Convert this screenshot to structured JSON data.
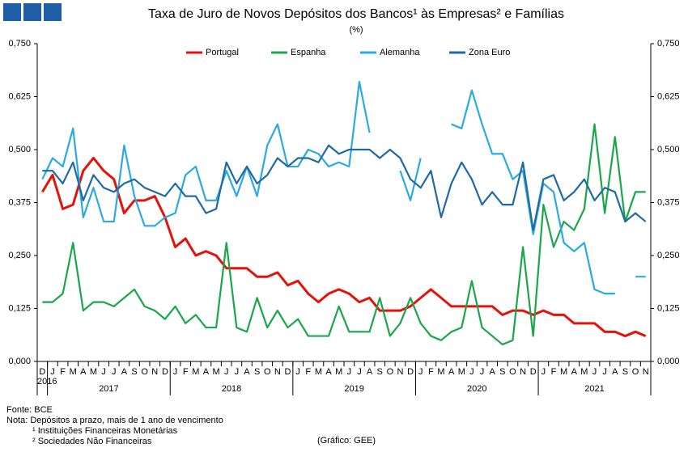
{
  "chart_data": {
    "type": "line",
    "title": "Taxa de Juro de Novos Depósitos dos Bancos¹ às Empresas² e Famílias",
    "subtitle": "(%)",
    "source": "Fonte: BCE",
    "note": "Nota: Depósitos a prazo, mais de 1 ano de vencimento",
    "footnotes": [
      "¹ Instituições Financeiras Monetárias",
      "² Sociedades Não Financeiras"
    ],
    "credit": "(Gráfico: GEE)",
    "categories": [
      "D",
      "J",
      "F",
      "M",
      "A",
      "M",
      "J",
      "J",
      "A",
      "S",
      "O",
      "N",
      "D",
      "J",
      "F",
      "M",
      "A",
      "M",
      "J",
      "J",
      "A",
      "S",
      "O",
      "N",
      "D",
      "J",
      "F",
      "M",
      "A",
      "M",
      "J",
      "J",
      "A",
      "S",
      "O",
      "N",
      "D",
      "J",
      "F",
      "M",
      "A",
      "M",
      "J",
      "J",
      "A",
      "S",
      "O",
      "N",
      "D",
      "J",
      "F",
      "M",
      "A",
      "M",
      "J",
      "J",
      "A",
      "S",
      "O",
      "N"
    ],
    "years": [
      "2016",
      "2017",
      "2018",
      "2019",
      "2020",
      "2021"
    ],
    "ylim": [
      0,
      0.75
    ],
    "yticks": [
      {
        "value": 0,
        "label": "0,000"
      },
      {
        "value": 0.125,
        "label": "0,125"
      },
      {
        "value": 0.25,
        "label": "0,250"
      },
      {
        "value": 0.375,
        "label": "0,375"
      },
      {
        "value": 0.5,
        "label": "0,500"
      },
      {
        "value": 0.625,
        "label": "0,625"
      },
      {
        "value": 0.75,
        "label": "0,750"
      }
    ],
    "y2lim": [
      0,
      0.75
    ],
    "y2ticks": [
      {
        "value": 0,
        "label": "0,000"
      },
      {
        "value": 0.125,
        "label": "0,125"
      },
      {
        "value": 0.25,
        "label": "0,250"
      },
      {
        "value": 0.375,
        "label": "0,375"
      },
      {
        "value": 0.5,
        "label": "0,500"
      },
      {
        "value": 0.625,
        "label": "0,625"
      },
      {
        "value": 0.75,
        "label": "0,750"
      }
    ],
    "grid": false,
    "legend": "top",
    "series": [
      {
        "name": "Portugal",
        "color": "#e3120b",
        "values": [
          0.4,
          0.44,
          0.36,
          0.37,
          0.45,
          0.48,
          0.45,
          0.43,
          0.35,
          0.38,
          0.38,
          0.39,
          0.34,
          0.27,
          0.29,
          0.25,
          0.26,
          0.25,
          0.22,
          0.22,
          0.22,
          0.2,
          0.2,
          0.21,
          0.18,
          0.19,
          0.16,
          0.14,
          0.16,
          0.17,
          0.16,
          0.14,
          0.15,
          0.12,
          0.12,
          0.12,
          0.13,
          0.15,
          0.17,
          0.15,
          0.13,
          0.13,
          0.13,
          0.13,
          0.13,
          0.11,
          0.12,
          0.12,
          0.11,
          0.12,
          0.11,
          0.11,
          0.09,
          0.09,
          0.09,
          0.07,
          0.07,
          0.06,
          0.07,
          0.06
        ]
      },
      {
        "name": "Espanha",
        "color": "#1aa64a",
        "values": [
          0.14,
          0.14,
          0.16,
          0.28,
          0.12,
          0.14,
          0.14,
          0.13,
          0.15,
          0.17,
          0.13,
          0.12,
          0.1,
          0.13,
          0.09,
          0.11,
          0.08,
          0.08,
          0.28,
          0.08,
          0.07,
          0.15,
          0.08,
          0.12,
          0.08,
          0.1,
          0.06,
          0.06,
          0.06,
          0.13,
          0.07,
          0.07,
          0.07,
          0.15,
          0.06,
          0.09,
          0.15,
          0.09,
          0.06,
          0.05,
          0.07,
          0.08,
          0.19,
          0.08,
          0.06,
          0.04,
          0.05,
          0.27,
          0.06,
          0.37,
          0.27,
          0.33,
          0.31,
          0.36,
          0.56,
          0.35,
          0.53,
          0.33,
          0.4,
          0.4
        ]
      },
      {
        "name": "Alemanha",
        "color": "#29abe2",
        "values": [
          0.43,
          0.48,
          0.46,
          0.55,
          0.34,
          0.41,
          0.33,
          0.33,
          0.51,
          0.39,
          0.32,
          0.32,
          0.34,
          0.35,
          0.44,
          0.46,
          0.38,
          0.38,
          0.45,
          0.39,
          0.46,
          0.39,
          0.51,
          0.56,
          0.46,
          0.46,
          0.5,
          0.49,
          0.46,
          0.47,
          0.46,
          0.66,
          0.54,
          null,
          null,
          0.45,
          0.38,
          0.48,
          null,
          null,
          0.56,
          0.55,
          0.64,
          0.56,
          0.49,
          0.49,
          0.43,
          0.45,
          0.3,
          0.42,
          0.4,
          0.28,
          0.26,
          0.28,
          0.17,
          0.16,
          0.16,
          null,
          0.2,
          0.2
        ]
      },
      {
        "name": "Zona Euro",
        "color": "#1f6aa5",
        "values": [
          0.45,
          0.45,
          0.42,
          0.47,
          0.38,
          0.44,
          0.41,
          0.4,
          0.42,
          0.43,
          0.41,
          0.4,
          0.39,
          0.42,
          0.39,
          0.39,
          0.35,
          0.36,
          0.47,
          0.42,
          0.46,
          0.42,
          0.44,
          0.48,
          0.46,
          0.48,
          0.48,
          0.47,
          0.51,
          0.49,
          0.5,
          0.5,
          0.5,
          0.48,
          0.5,
          0.48,
          0.43,
          0.41,
          0.45,
          0.34,
          0.42,
          0.47,
          0.43,
          0.37,
          0.4,
          0.37,
          0.37,
          0.47,
          0.31,
          0.43,
          0.44,
          0.38,
          0.4,
          0.43,
          0.38,
          0.41,
          0.4,
          0.33,
          0.35,
          0.33
        ]
      }
    ]
  }
}
